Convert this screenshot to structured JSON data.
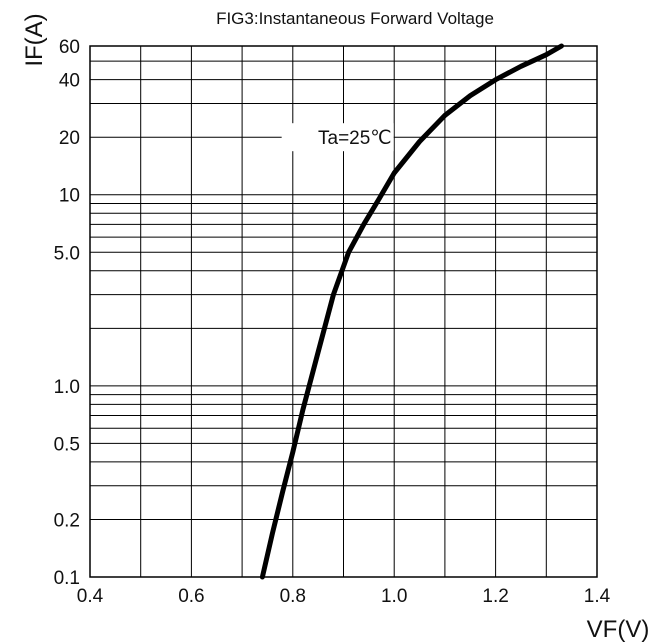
{
  "chart_data": {
    "type": "line",
    "title": "FIG3:Instantaneous Forward Voltage",
    "xlabel": "VF(V)",
    "ylabel": "IF(A)",
    "x_scale": "linear",
    "y_scale": "log",
    "xlim": [
      0.4,
      1.4
    ],
    "ylim": [
      0.1,
      60
    ],
    "x_ticks": [
      {
        "value": 0.4,
        "label": "0.4"
      },
      {
        "value": 0.6,
        "label": "0.6"
      },
      {
        "value": 0.8,
        "label": "0.8"
      },
      {
        "value": 1.0,
        "label": "1.0"
      },
      {
        "value": 1.2,
        "label": "1.2"
      },
      {
        "value": 1.4,
        "label": "1.4"
      }
    ],
    "y_ticks": [
      {
        "value": 0.1,
        "label": "0.1"
      },
      {
        "value": 0.2,
        "label": "0.2"
      },
      {
        "value": 0.5,
        "label": "0.5"
      },
      {
        "value": 1.0,
        "label": "1.0"
      },
      {
        "value": 5.0,
        "label": "5.0"
      },
      {
        "value": 10,
        "label": "10"
      },
      {
        "value": 20,
        "label": "20"
      },
      {
        "value": 40,
        "label": "40"
      },
      {
        "value": 60,
        "label": "60"
      }
    ],
    "grid": true,
    "annotation": "Ta=25℃",
    "series": [
      {
        "color": "#000000",
        "points": [
          [
            0.74,
            0.1
          ],
          [
            0.76,
            0.17
          ],
          [
            0.78,
            0.28
          ],
          [
            0.8,
            0.45
          ],
          [
            0.82,
            0.75
          ],
          [
            0.85,
            1.5
          ],
          [
            0.88,
            3.0
          ],
          [
            0.91,
            5.0
          ],
          [
            0.94,
            7.0
          ],
          [
            0.97,
            9.5
          ],
          [
            1.0,
            13
          ],
          [
            1.05,
            19
          ],
          [
            1.1,
            26
          ],
          [
            1.15,
            33
          ],
          [
            1.2,
            40
          ],
          [
            1.25,
            47
          ],
          [
            1.3,
            54
          ],
          [
            1.33,
            60
          ]
        ]
      }
    ]
  }
}
